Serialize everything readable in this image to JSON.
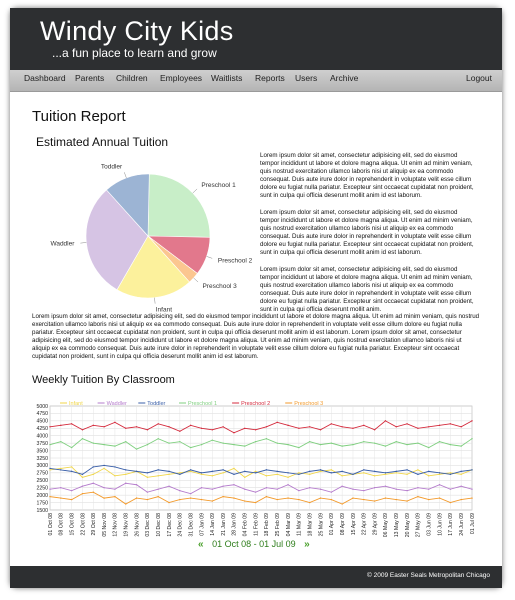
{
  "brand": {
    "name": "Windy City Kids",
    "tagline": "...a fun place to learn and grow"
  },
  "nav": {
    "items": [
      "Dashboard",
      "Parents",
      "Children",
      "Employees",
      "Waitlists",
      "Reports",
      "Users",
      "Archive"
    ],
    "logout": "Logout"
  },
  "page_title": "Tuition Report",
  "pie_section": {
    "title": "Estimated Annual Tuition"
  },
  "paragraphs": {
    "p1": "Lorem ipsum dolor sit amet, consectetur adipisicing elit, sed do eiusmod tempor incididunt ut labore et dolore magna aliqua. Ut enim ad minim veniam, quis nostrud exercitation ullamco laboris nisi ut aliquip ex ea commodo consequat. Duis aute irure dolor in reprehenderit in voluptate velit esse cillum dolore eu fugiat nulla pariatur. Excepteur sint occaecat cupidatat non proident, sunt in culpa qui officia deserunt mollit anim id est laborum.",
    "p2": "Lorem ipsum dolor sit amet, consectetur adipisicing elit, sed do eiusmod tempor incididunt ut labore et dolore magna aliqua. Ut enim ad minim veniam, quis nostrud exercitation ullamco laboris nisi ut aliquip ex ea commodo consequat. Duis aute irure dolor in reprehenderit in voluptate velit esse cillum dolore eu fugiat nulla pariatur. Excepteur sint occaecat cupidatat non proident, sunt in culpa qui officia deserunt mollit anim id est laborum.",
    "p3": "Lorem ipsum dolor sit amet, consectetur adipisicing elit, sed do eiusmod tempor incididunt ut labore et dolore magna aliqua. Ut enim ad minim veniam, quis nostrud exercitation ullamco laboris nisi ut aliquip ex ea commodo consequat. Duis aute irure dolor in reprehenderit in voluptate velit esse cillum dolore eu fugiat nulla pariatur. Excepteur sint occaecat cupidatat non proident, sunt in culpa qui officia deserunt mollit anim.",
    "p4": "Lorem ipsum dolor sit amet, consectetur adipisicing elit, sed do eiusmod tempor incididunt ut labore et dolore magna aliqua. Ut enim ad minim veniam, quis nostrud exercitation ullamco laboris nisi ut aliquip ex ea commodo consequat. Duis aute irure dolor in reprehenderit in voluptate velit esse cillum dolore eu fugiat nulla pariatur. Excepteur sint occaecat cupidatat non proident, sunt in culpa qui officia deserunt mollit anim id est laborum. Lorem ipsum dolor sit amet, consectetur adipisicing elit, sed do eiusmod tempor incididunt ut labore et dolore magna aliqua. Ut enim ad minim veniam, quis nostrud exercitation ullamco laboris nisi ut aliquip ex ea commodo consequat. Duis aute irure dolor in reprehenderit in voluptate velit esse cillum dolore eu fugiat nulla pariatur. Excepteur sint occaecat cupidatat non proident, sunt in culpa qui officia deserunt mollit anim id est laborum."
  },
  "weekly_section": {
    "title": "Weekly Tuition By Classroom"
  },
  "pager": {
    "prev": "«",
    "label": "01 Oct 08 - 01 Jul 09",
    "next": "»"
  },
  "footer": {
    "copyright": "© 2009 Easter Seals Metropolitan Chicago"
  },
  "chart_data": [
    {
      "type": "pie",
      "title": "Estimated Annual Tuition",
      "labels": [
        "Preschool 1",
        "Preschool 2",
        "Preschool 3",
        "Infant",
        "Waddler",
        "Toddler"
      ],
      "values": [
        25,
        10,
        3,
        20,
        30,
        12
      ],
      "colors": [
        "#c8eec8",
        "#e2788c",
        "#fbc690",
        "#fcf19c",
        "#d6c4e4",
        "#9cb4d4"
      ]
    },
    {
      "type": "line",
      "title": "Weekly Tuition By Classroom",
      "ylim": [
        1500,
        5000
      ],
      "yticks": [
        1500,
        1750,
        2000,
        2250,
        2500,
        2750,
        3000,
        3250,
        3500,
        3750,
        4000,
        4250,
        4500,
        4750,
        5000
      ],
      "legend_position": "top",
      "grid": true,
      "x": [
        "01 Oct 08",
        "08 Oct 08",
        "15 Oct 08",
        "22 Oct 08",
        "29 Oct 08",
        "05 Nov 08",
        "12 Nov 08",
        "19 Nov 08",
        "26 Nov 08",
        "03 Dec 08",
        "10 Dec 08",
        "17 Dec 08",
        "24 Dec 08",
        "31 Dec 08",
        "07 Jan 09",
        "14 Jan 09",
        "21 Jan 09",
        "28 Jan 09",
        "04 Feb 09",
        "11 Feb 09",
        "18 Feb 09",
        "25 Feb 09",
        "04 Mar 09",
        "11 Mar 09",
        "18 Mar 09",
        "25 Mar 09",
        "01 Apr 09",
        "08 Apr 09",
        "15 Apr 09",
        "22 Apr 09",
        "29 Apr 09",
        "06 May 09",
        "13 May 09",
        "20 May 09",
        "27 May 09",
        "03 Jun 09",
        "10 Jun 09",
        "17 Jun 09",
        "24 Jun 09",
        "01 Jul 09"
      ],
      "series": [
        {
          "name": "Infant",
          "color": "#f0d64a",
          "values": [
            2850,
            2900,
            2950,
            2600,
            2700,
            2900,
            2650,
            2700,
            2800,
            2600,
            2650,
            2700,
            2750,
            2800,
            2700,
            2650,
            2750,
            2900,
            2600,
            2800,
            2650,
            2700,
            2600,
            2750,
            2700,
            2800,
            2850,
            2650,
            2700,
            2750,
            2650,
            2700,
            2750,
            2700,
            2850,
            2650,
            2700,
            2750,
            2700,
            2850
          ]
        },
        {
          "name": "Waddler",
          "color": "#b57ccc",
          "values": [
            2200,
            2250,
            2150,
            2300,
            2400,
            2250,
            2200,
            2400,
            2350,
            2100,
            2200,
            2300,
            2150,
            2050,
            2250,
            2200,
            2300,
            2350,
            2200,
            2100,
            2250,
            2200,
            2350,
            2150,
            2250,
            2200,
            2100,
            2300,
            2200,
            2150,
            2250,
            2300,
            2200,
            2150,
            2250,
            2200,
            2350,
            2200,
            2300,
            2200
          ]
        },
        {
          "name": "Toddler",
          "color": "#3a5fa8",
          "values": [
            2900,
            2850,
            2800,
            2700,
            2950,
            3000,
            2950,
            2850,
            2800,
            2750,
            2850,
            2800,
            2700,
            2850,
            2750,
            2800,
            2850,
            2700,
            2800,
            2750,
            2850,
            2800,
            2750,
            2700,
            2800,
            2850,
            2750,
            2800,
            2700,
            2850,
            2800,
            2750,
            2800,
            2850,
            2700,
            2800,
            2750,
            2700,
            2800,
            2850
          ]
        },
        {
          "name": "Preschool 1",
          "color": "#7fcf7f",
          "values": [
            3700,
            3800,
            3600,
            3900,
            3750,
            3700,
            3650,
            3800,
            3550,
            3700,
            3900,
            3750,
            3800,
            3600,
            3700,
            3850,
            3750,
            3700,
            3650,
            3800,
            3900,
            3750,
            3700,
            3600,
            3800,
            3700,
            3750,
            3650,
            3700,
            3800,
            3750,
            3650,
            3800,
            3700,
            3750,
            3600,
            3800,
            3700,
            3650,
            3900
          ]
        },
        {
          "name": "Preschool 2",
          "color": "#d42a3c",
          "values": [
            4300,
            4350,
            4400,
            4200,
            4350,
            4300,
            4450,
            4250,
            4300,
            4200,
            4400,
            4300,
            4150,
            4350,
            4250,
            4200,
            4300,
            4100,
            4250,
            4200,
            4300,
            4450,
            4350,
            4250,
            4300,
            4200,
            4400,
            4300,
            4250,
            4350,
            4200,
            4500,
            4300,
            4400,
            4250,
            4300,
            4350,
            4400,
            4300,
            4500
          ]
        },
        {
          "name": "Preschool 3",
          "color": "#f39a2b",
          "values": [
            1950,
            1900,
            1850,
            2050,
            2100,
            1900,
            1950,
            1700,
            1900,
            1850,
            1950,
            1750,
            1850,
            1900,
            1850,
            1800,
            1950,
            1900,
            1800,
            1750,
            1950,
            1850,
            1900,
            1850,
            1750,
            1900,
            1850,
            1700,
            1900,
            1850,
            1800,
            1900,
            1850,
            1800,
            1950,
            1850,
            1900,
            1750,
            1850,
            1900
          ]
        }
      ]
    }
  ]
}
